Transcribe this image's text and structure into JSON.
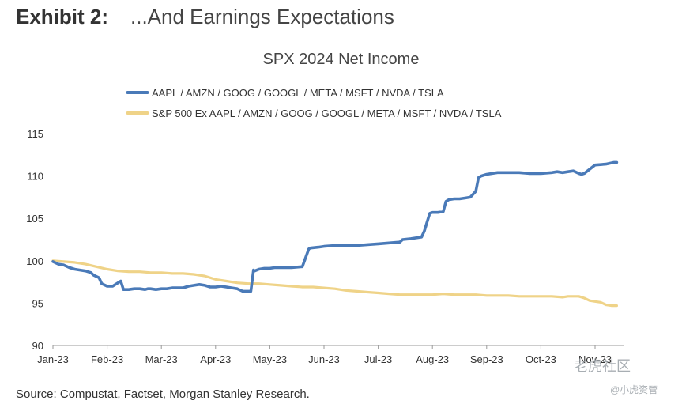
{
  "header": {
    "exhibit_number": "Exhibit 2:",
    "exhibit_title": "...And Earnings Expectations"
  },
  "chart_data": {
    "type": "line",
    "title": "SPX 2024 Net Income",
    "xlabel": "",
    "ylabel": "",
    "ylim": [
      90,
      115
    ],
    "yticks": [
      90,
      95,
      100,
      105,
      110,
      115
    ],
    "xticks": [
      "Jan-23",
      "Feb-23",
      "Mar-23",
      "Apr-23",
      "May-23",
      "Jun-23",
      "Jul-23",
      "Aug-23",
      "Sep-23",
      "Oct-23",
      "Nov-23"
    ],
    "legend_placement": "top-left",
    "grid": false,
    "series": [
      {
        "name": "AAPL / AMZN / GOOG / GOOGL / META / MSFT / NVDA / TSLA",
        "color": "#4a7ab8",
        "x": [
          0,
          0.1,
          0.2,
          0.3,
          0.4,
          0.5,
          0.6,
          0.7,
          0.75,
          0.85,
          0.9,
          1.0,
          1.1,
          1.25,
          1.3,
          1.4,
          1.5,
          1.6,
          1.7,
          1.75,
          1.8,
          1.9,
          2.0,
          2.1,
          2.2,
          2.25,
          2.4,
          2.5,
          2.6,
          2.7,
          2.8,
          2.9,
          3.0,
          3.1,
          3.2,
          3.3,
          3.4,
          3.5,
          3.65,
          3.7,
          3.72,
          3.8,
          3.9,
          4.0,
          4.1,
          4.2,
          4.4,
          4.6,
          4.72,
          4.75,
          4.9,
          5.0,
          5.2,
          5.4,
          5.6,
          5.8,
          6.0,
          6.2,
          6.4,
          6.45,
          6.6,
          6.8,
          6.85,
          6.95,
          7.0,
          7.1,
          7.2,
          7.25,
          7.3,
          7.4,
          7.5,
          7.6,
          7.7,
          7.8,
          7.85,
          7.9,
          8.0,
          8.2,
          8.4,
          8.6,
          8.8,
          9.0,
          9.2,
          9.3,
          9.4,
          9.5,
          9.6,
          9.7,
          9.75,
          9.8,
          10.0,
          10.2,
          10.35,
          10.4
        ],
        "values": [
          99.9,
          99.6,
          99.5,
          99.2,
          99.0,
          98.9,
          98.8,
          98.6,
          98.3,
          98.0,
          97.3,
          97.0,
          97.0,
          97.6,
          96.6,
          96.6,
          96.7,
          96.7,
          96.6,
          96.7,
          96.7,
          96.6,
          96.7,
          96.7,
          96.8,
          96.8,
          96.8,
          97.0,
          97.1,
          97.2,
          97.1,
          96.9,
          96.9,
          97.0,
          96.9,
          96.8,
          96.7,
          96.4,
          96.4,
          98.9,
          98.8,
          99.0,
          99.1,
          99.1,
          99.2,
          99.2,
          99.2,
          99.3,
          101.4,
          101.5,
          101.6,
          101.7,
          101.8,
          101.8,
          101.8,
          101.9,
          102.0,
          102.1,
          102.2,
          102.5,
          102.6,
          102.8,
          103.5,
          105.6,
          105.7,
          105.7,
          105.8,
          107.0,
          107.2,
          107.3,
          107.3,
          107.4,
          107.5,
          108.2,
          109.8,
          110.0,
          110.2,
          110.4,
          110.4,
          110.4,
          110.3,
          110.3,
          110.4,
          110.5,
          110.4,
          110.5,
          110.6,
          110.3,
          110.2,
          110.3,
          111.3,
          111.4,
          111.6,
          111.6
        ]
      },
      {
        "name": "S&P 500 Ex AAPL / AMZN / GOOG / GOOGL / META / MSFT / NVDA / TSLA",
        "color": "#efd388",
        "x": [
          0,
          0.2,
          0.4,
          0.6,
          0.8,
          1.0,
          1.2,
          1.4,
          1.6,
          1.8,
          2.0,
          2.2,
          2.4,
          2.6,
          2.8,
          3.0,
          3.2,
          3.4,
          3.6,
          3.8,
          4.0,
          4.2,
          4.4,
          4.6,
          4.8,
          5.0,
          5.2,
          5.4,
          5.6,
          5.8,
          6.0,
          6.2,
          6.4,
          6.6,
          6.8,
          7.0,
          7.2,
          7.4,
          7.6,
          7.8,
          8.0,
          8.2,
          8.4,
          8.6,
          8.8,
          9.0,
          9.2,
          9.4,
          9.5,
          9.6,
          9.7,
          9.8,
          9.9,
          10.0,
          10.1,
          10.2,
          10.3,
          10.4
        ],
        "values": [
          100.0,
          99.9,
          99.8,
          99.6,
          99.3,
          99.0,
          98.8,
          98.7,
          98.7,
          98.6,
          98.6,
          98.5,
          98.5,
          98.4,
          98.2,
          97.8,
          97.6,
          97.4,
          97.3,
          97.3,
          97.2,
          97.1,
          97.0,
          96.9,
          96.9,
          96.8,
          96.7,
          96.5,
          96.4,
          96.3,
          96.2,
          96.1,
          96.0,
          96.0,
          96.0,
          96.0,
          96.1,
          96.0,
          96.0,
          96.0,
          95.9,
          95.9,
          95.9,
          95.8,
          95.8,
          95.8,
          95.8,
          95.7,
          95.8,
          95.8,
          95.8,
          95.6,
          95.3,
          95.2,
          95.1,
          94.8,
          94.7,
          94.7
        ]
      }
    ]
  },
  "footer": {
    "source": "Source: Compustat, Factset, Morgan Stanley Research."
  },
  "watermark": {
    "line1": "老虎社区",
    "line2": "@小虎资管"
  }
}
